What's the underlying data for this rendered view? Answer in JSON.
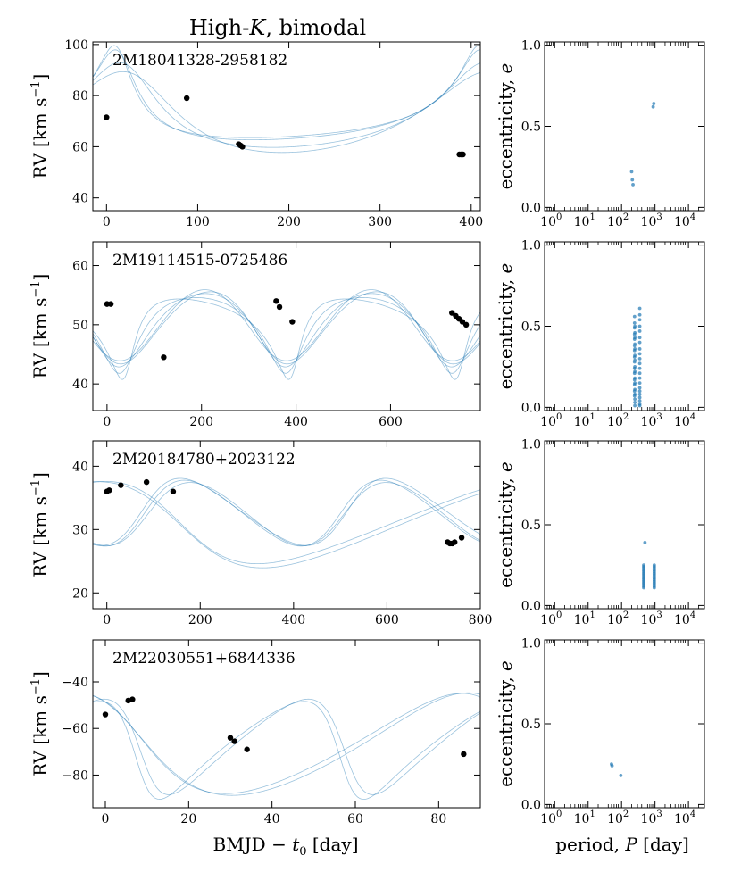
{
  "figure": {
    "title_prefix": "High-",
    "title_k": "K",
    "title_suffix": ", bimodal",
    "left_ylabel_main": "RV [km s",
    "left_ylabel_sup": "−1",
    "left_ylabel_close": "]",
    "right_ylabel_main": "eccentricity, ",
    "right_ylabel_e": "e",
    "left_xlabel_main": "BMJD − ",
    "left_xlabel_t": "t",
    "left_xlabel_sub": "0",
    "left_xlabel_unit": " [day]",
    "right_xlabel_main": "period, ",
    "right_xlabel_p": "P",
    "right_xlabel_unit": " [day]"
  },
  "colors": {
    "model": "#1f77b4",
    "points": "#000000",
    "axis": "#000000"
  },
  "chart_data": [
    {
      "type": "line",
      "name": "2M18041328-2958182",
      "xlim": [
        -15,
        410
      ],
      "ylim": [
        35,
        101
      ],
      "xticks": [
        0,
        100,
        200,
        300,
        400
      ],
      "yticks": [
        40,
        60,
        80,
        100
      ],
      "observations": {
        "x": [
          0,
          88,
          145,
          147,
          149,
          387,
          389,
          391
        ],
        "y": [
          71.5,
          79,
          61,
          60.5,
          60,
          57,
          57,
          57
        ]
      },
      "orbits": [
        {
          "P": 400,
          "e": 0.56,
          "K": 17.6,
          "w": 0.3,
          "v0": 70.9,
          "t0": 14
        },
        {
          "P": 400,
          "e": 0.4,
          "K": 16.6,
          "w": 0.3,
          "v0": 70.0,
          "t0": 22
        },
        {
          "P": 400,
          "e": 0.28,
          "K": 15.8,
          "w": 0.35,
          "v0": 69.4,
          "t0": 30
        },
        {
          "P": 400,
          "e": 0.6,
          "K": 18.0,
          "w": 0.28,
          "v0": 71.2,
          "t0": 12
        }
      ],
      "period_axis": {
        "xlim": [
          0.5,
          30000
        ],
        "ylim": [
          -0.02,
          1.02
        ],
        "yticks": [
          0.0,
          0.5,
          1.0
        ]
      },
      "samples": {
        "period": [
          200,
          210,
          220,
          880,
          920
        ],
        "eccentricity": [
          0.22,
          0.17,
          0.14,
          0.62,
          0.64
        ]
      }
    },
    {
      "type": "line",
      "name": "2M19114515-0725486",
      "xlim": [
        -30,
        790
      ],
      "ylim": [
        35.5,
        64
      ],
      "xticks": [
        0,
        200,
        400,
        600
      ],
      "yticks": [
        40,
        50,
        60
      ],
      "observations": {
        "x": [
          0,
          8,
          120,
          358,
          365,
          392,
          730,
          738,
          745,
          752,
          760
        ],
        "y": [
          53.5,
          53.5,
          44.5,
          54,
          53,
          50.5,
          52,
          51.5,
          51,
          50.5,
          50
        ]
      },
      "orbits": [
        {
          "P": 352,
          "e": 0.05,
          "K": 6.0,
          "w": 2.8,
          "v0": 50.2,
          "t0": 10
        },
        {
          "P": 352,
          "e": 0.2,
          "K": 6.2,
          "w": 3.0,
          "v0": 50.3,
          "t0": 20
        },
        {
          "P": 352,
          "e": 0.35,
          "K": 6.4,
          "w": 3.3,
          "v0": 50.4,
          "t0": 30
        },
        {
          "P": 352,
          "e": 0.5,
          "K": 6.8,
          "w": 3.6,
          "v0": 50.6,
          "t0": 40
        },
        {
          "P": 352,
          "e": 0.12,
          "K": 6.1,
          "w": 2.6,
          "v0": 50.1,
          "t0": 5
        }
      ],
      "period_axis": {
        "xlim": [
          0.5,
          30000
        ],
        "ylim": [
          -0.02,
          1.02
        ],
        "yticks": [
          0.0,
          0.5,
          1.0
        ]
      },
      "samples": {
        "period": [
          245,
          245,
          245,
          245,
          245,
          245,
          245,
          245,
          245,
          245,
          245,
          245,
          245,
          245,
          245,
          250,
          250,
          250,
          250,
          250,
          250,
          250,
          250,
          250,
          250,
          250,
          250,
          250,
          250,
          250,
          250,
          350,
          350,
          350,
          350,
          350,
          350,
          350,
          350,
          350,
          350,
          350,
          350,
          350,
          350,
          350,
          350,
          350,
          350,
          350,
          350,
          350,
          350
        ],
        "eccentricity": [
          0.56,
          0.52,
          0.49,
          0.45,
          0.42,
          0.38,
          0.35,
          0.31,
          0.28,
          0.24,
          0.21,
          0.17,
          0.14,
          0.1,
          0.07,
          0.5,
          0.46,
          0.43,
          0.39,
          0.36,
          0.32,
          0.29,
          0.25,
          0.22,
          0.18,
          0.15,
          0.11,
          0.08,
          0.05,
          0.03,
          0.01,
          0.61,
          0.57,
          0.54,
          0.5,
          0.47,
          0.43,
          0.4,
          0.36,
          0.33,
          0.3,
          0.27,
          0.24,
          0.21,
          0.18,
          0.15,
          0.12,
          0.1,
          0.08,
          0.06,
          0.04,
          0.02,
          0.01
        ]
      }
    },
    {
      "type": "line",
      "name": "2M20184780+2023122",
      "xlim": [
        -30,
        800
      ],
      "ylim": [
        17.5,
        44
      ],
      "xticks": [
        0,
        200,
        400,
        600,
        800
      ],
      "yticks": [
        20,
        30,
        40
      ],
      "observations": {
        "x": [
          0,
          5,
          30,
          85,
          142,
          730,
          735,
          740,
          745,
          760
        ],
        "y": [
          36,
          36.2,
          37,
          37.5,
          36,
          28,
          27.8,
          27.8,
          28,
          28.7
        ]
      },
      "orbits": [
        {
          "P": 420,
          "e": 0.15,
          "K": 5.2,
          "w": 4.7,
          "v0": 32.6,
          "t0": 80
        },
        {
          "P": 420,
          "e": 0.12,
          "K": 5.0,
          "w": 4.6,
          "v0": 32.5,
          "t0": 82
        },
        {
          "P": 440,
          "e": 0.18,
          "K": 5.3,
          "w": 4.8,
          "v0": 32.7,
          "t0": 78
        },
        {
          "P": 900,
          "e": 0.22,
          "K": 6.5,
          "w": 1.5,
          "v0": 31.0,
          "t0": 150
        },
        {
          "P": 950,
          "e": 0.2,
          "K": 6.8,
          "w": 1.6,
          "v0": 30.8,
          "t0": 160
        }
      ],
      "period_axis": {
        "xlim": [
          0.5,
          30000
        ],
        "ylim": [
          -0.02,
          1.02
        ],
        "yticks": [
          0.0,
          0.5,
          1.0
        ]
      },
      "samples": {
        "period": [
          460,
          460,
          460,
          460,
          460,
          460,
          460,
          460,
          460,
          460,
          460,
          460,
          460,
          460,
          460,
          950,
          950,
          950,
          950,
          950,
          950,
          950,
          950,
          950,
          950,
          950,
          950,
          950,
          950,
          950,
          500
        ],
        "eccentricity": [
          0.25,
          0.24,
          0.23,
          0.22,
          0.21,
          0.2,
          0.19,
          0.18,
          0.17,
          0.16,
          0.15,
          0.14,
          0.13,
          0.12,
          0.11,
          0.25,
          0.24,
          0.23,
          0.22,
          0.21,
          0.2,
          0.19,
          0.18,
          0.17,
          0.16,
          0.15,
          0.14,
          0.13,
          0.12,
          0.11,
          0.39
        ]
      }
    },
    {
      "type": "line",
      "name": "2M22030551+6844336",
      "xlim": [
        -3,
        90
      ],
      "ylim": [
        -94,
        -22
      ],
      "xticks": [
        0,
        20,
        40,
        60,
        80
      ],
      "yticks": [
        -40,
        -60,
        -80
      ],
      "observations": {
        "x": [
          0,
          5.5,
          6.5,
          30,
          31,
          34,
          86
        ],
        "y": [
          -54,
          -48,
          -47.5,
          -64,
          -65.5,
          -69,
          -71
        ]
      },
      "orbits": [
        {
          "P": 49,
          "e": 0.35,
          "K": 21.0,
          "w": 1.9,
          "v0": -67.0,
          "t0": 8
        },
        {
          "P": 49,
          "e": 0.3,
          "K": 20.5,
          "w": 1.8,
          "v0": -66.5,
          "t0": 9
        },
        {
          "P": 92,
          "e": 0.2,
          "K": 21.5,
          "w": 1.2,
          "v0": -68.0,
          "t0": 6
        },
        {
          "P": 94,
          "e": 0.18,
          "K": 22.0,
          "w": 1.1,
          "v0": -68.5,
          "t0": 5
        }
      ],
      "period_axis": {
        "xlim": [
          0.5,
          30000
        ],
        "ylim": [
          -0.02,
          1.02
        ],
        "yticks": [
          0.0,
          0.5,
          1.0
        ]
      },
      "samples": {
        "period": [
          50,
          52,
          95
        ],
        "eccentricity": [
          0.25,
          0.24,
          0.18
        ]
      }
    }
  ]
}
